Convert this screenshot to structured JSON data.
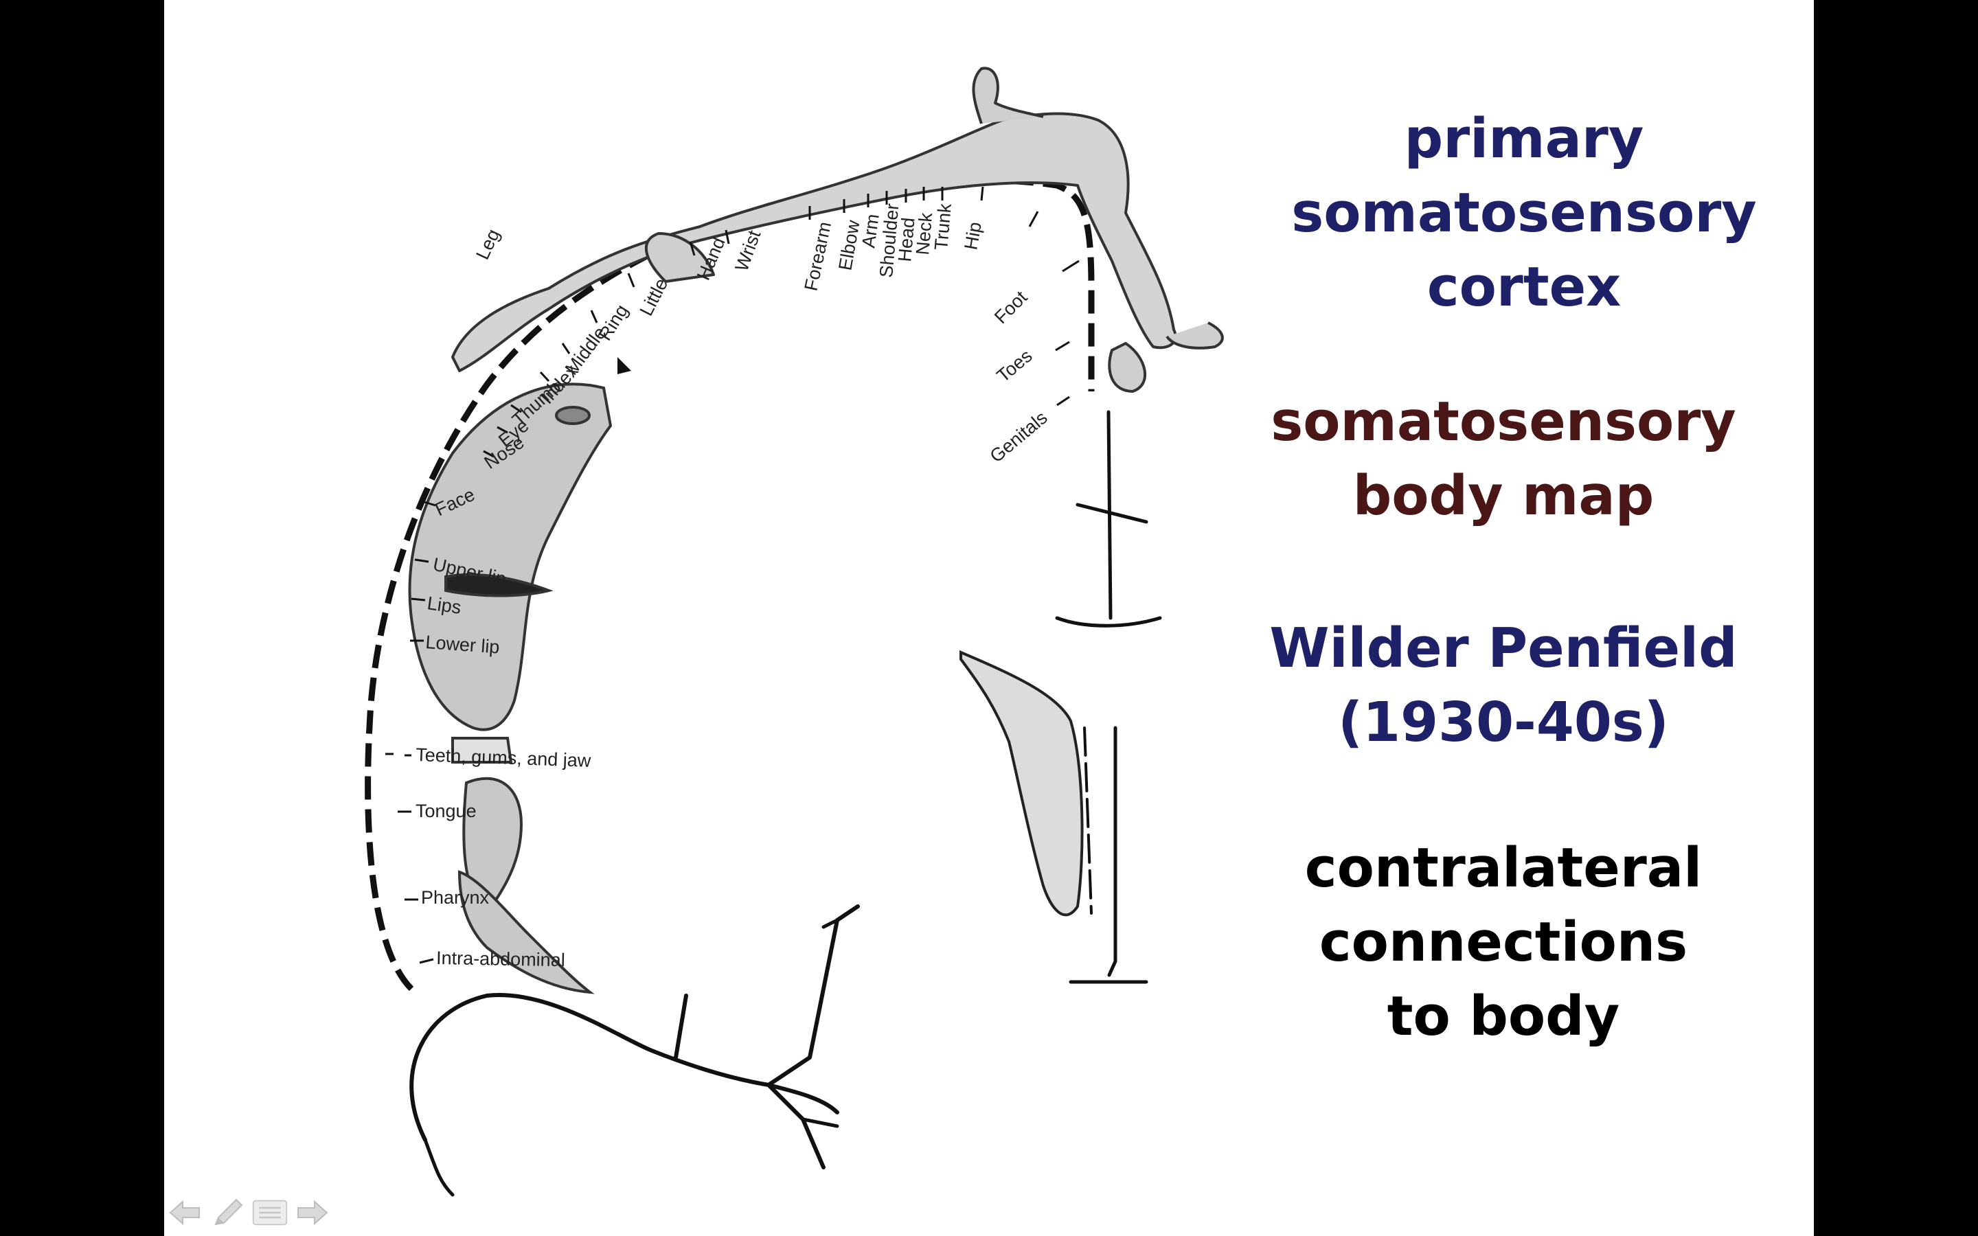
{
  "title_block": {
    "lines": [
      "primary",
      "somatosensory",
      "cortex"
    ],
    "color": "#1e2068"
  },
  "map_block": {
    "lines": [
      "somatosensory",
      "body map"
    ],
    "color": "#4a1616"
  },
  "author_block": {
    "lines": [
      "Wilder Penfield",
      "(1930-40s)"
    ],
    "color": "#1e2068"
  },
  "contra_block": {
    "lines": [
      "contralateral",
      "connections",
      "to body"
    ],
    "color": "#000000"
  },
  "body_map": {
    "labels": [
      "Genitals",
      "Toes",
      "Foot",
      "Leg",
      "Hip",
      "Trunk",
      "Neck",
      "Head",
      "Shoulder",
      "Arm",
      "Elbow",
      "Forearm",
      "Wrist",
      "Hand",
      "Little",
      "Ring",
      "Middle",
      "Index",
      "Thumb",
      "Eye",
      "Nose",
      "Face",
      "Upper lip",
      "Lips",
      "Lower lip",
      "Teeth, gums, and jaw",
      "Tongue",
      "Pharynx",
      "Intra-abdominal"
    ]
  },
  "controls": {
    "icons": [
      "arrow-left-icon",
      "pencil-icon",
      "menu-icon",
      "arrow-right-icon"
    ]
  }
}
